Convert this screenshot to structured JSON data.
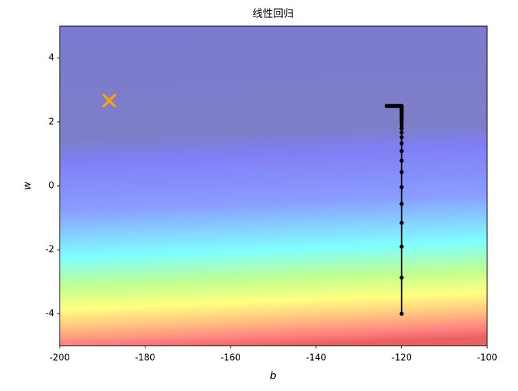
{
  "chart_data": {
    "type": "line",
    "title": "线性回归",
    "xlabel": "b",
    "ylabel": "w",
    "xlim": [
      -200,
      -100
    ],
    "ylim": [
      -5,
      5
    ],
    "xticks": [
      -200,
      -180,
      -160,
      -140,
      -120,
      -100
    ],
    "yticks": [
      -4,
      -2,
      0,
      2,
      4
    ],
    "series": [
      {
        "color": "#000000",
        "marker": "o",
        "x": [
          -120,
          -120,
          -120,
          -120,
          -120,
          -120,
          -120,
          -120,
          -120,
          -120,
          -120,
          -120,
          -120,
          -120,
          -120,
          -120,
          -120,
          -120,
          -120,
          -120,
          -120,
          -120,
          -120,
          -120,
          -120,
          -120.3,
          -120.7,
          -121.1,
          -121.5,
          -122.0,
          -122.5,
          -123.0,
          -123.5
        ],
        "y": [
          -4.0,
          -2.87,
          -1.9,
          -1.16,
          -0.56,
          -0.04,
          0.43,
          0.79,
          1.09,
          1.33,
          1.52,
          1.67,
          1.8,
          1.9,
          1.99,
          2.07,
          2.14,
          2.2,
          2.25,
          2.29,
          2.33,
          2.37,
          2.42,
          2.46,
          2.5,
          2.5,
          2.5,
          2.5,
          2.5,
          2.5,
          2.5,
          2.5,
          2.5
        ]
      },
      {
        "color": "#ffa500",
        "marker": "x",
        "x": [
          -188.4
        ],
        "y": [
          2.67
        ]
      }
    ]
  }
}
